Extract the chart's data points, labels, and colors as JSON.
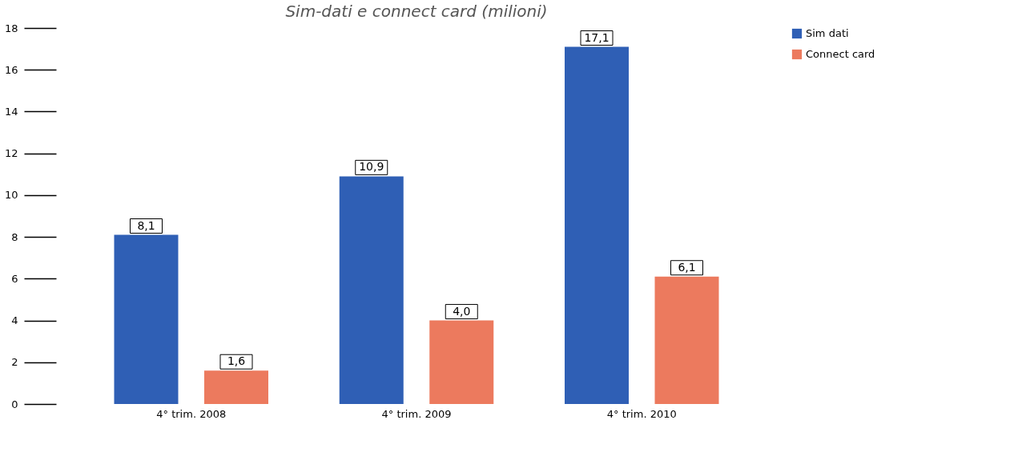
{
  "chart_data": {
    "type": "bar",
    "title": "Sim-dati e connect card (milioni)",
    "categories": [
      "4° trim. 2008",
      "4° trim. 2009",
      "4° trim. 2010"
    ],
    "series": [
      {
        "name": "Sim dati",
        "color": "#2f5fb5",
        "values": [
          8.1,
          10.9,
          17.1
        ],
        "value_labels": [
          "8,1",
          "10,9",
          "17,1"
        ]
      },
      {
        "name": "Connect card",
        "color": "#ec7a5e",
        "values": [
          1.6,
          4.0,
          6.1
        ],
        "value_labels": [
          "1,6",
          "4,0",
          "6,1"
        ]
      }
    ],
    "ylim": [
      0,
      18
    ],
    "yticks": [
      0,
      2,
      4,
      6,
      8,
      10,
      12,
      14,
      16,
      18
    ],
    "grid": false,
    "legend": "right"
  }
}
